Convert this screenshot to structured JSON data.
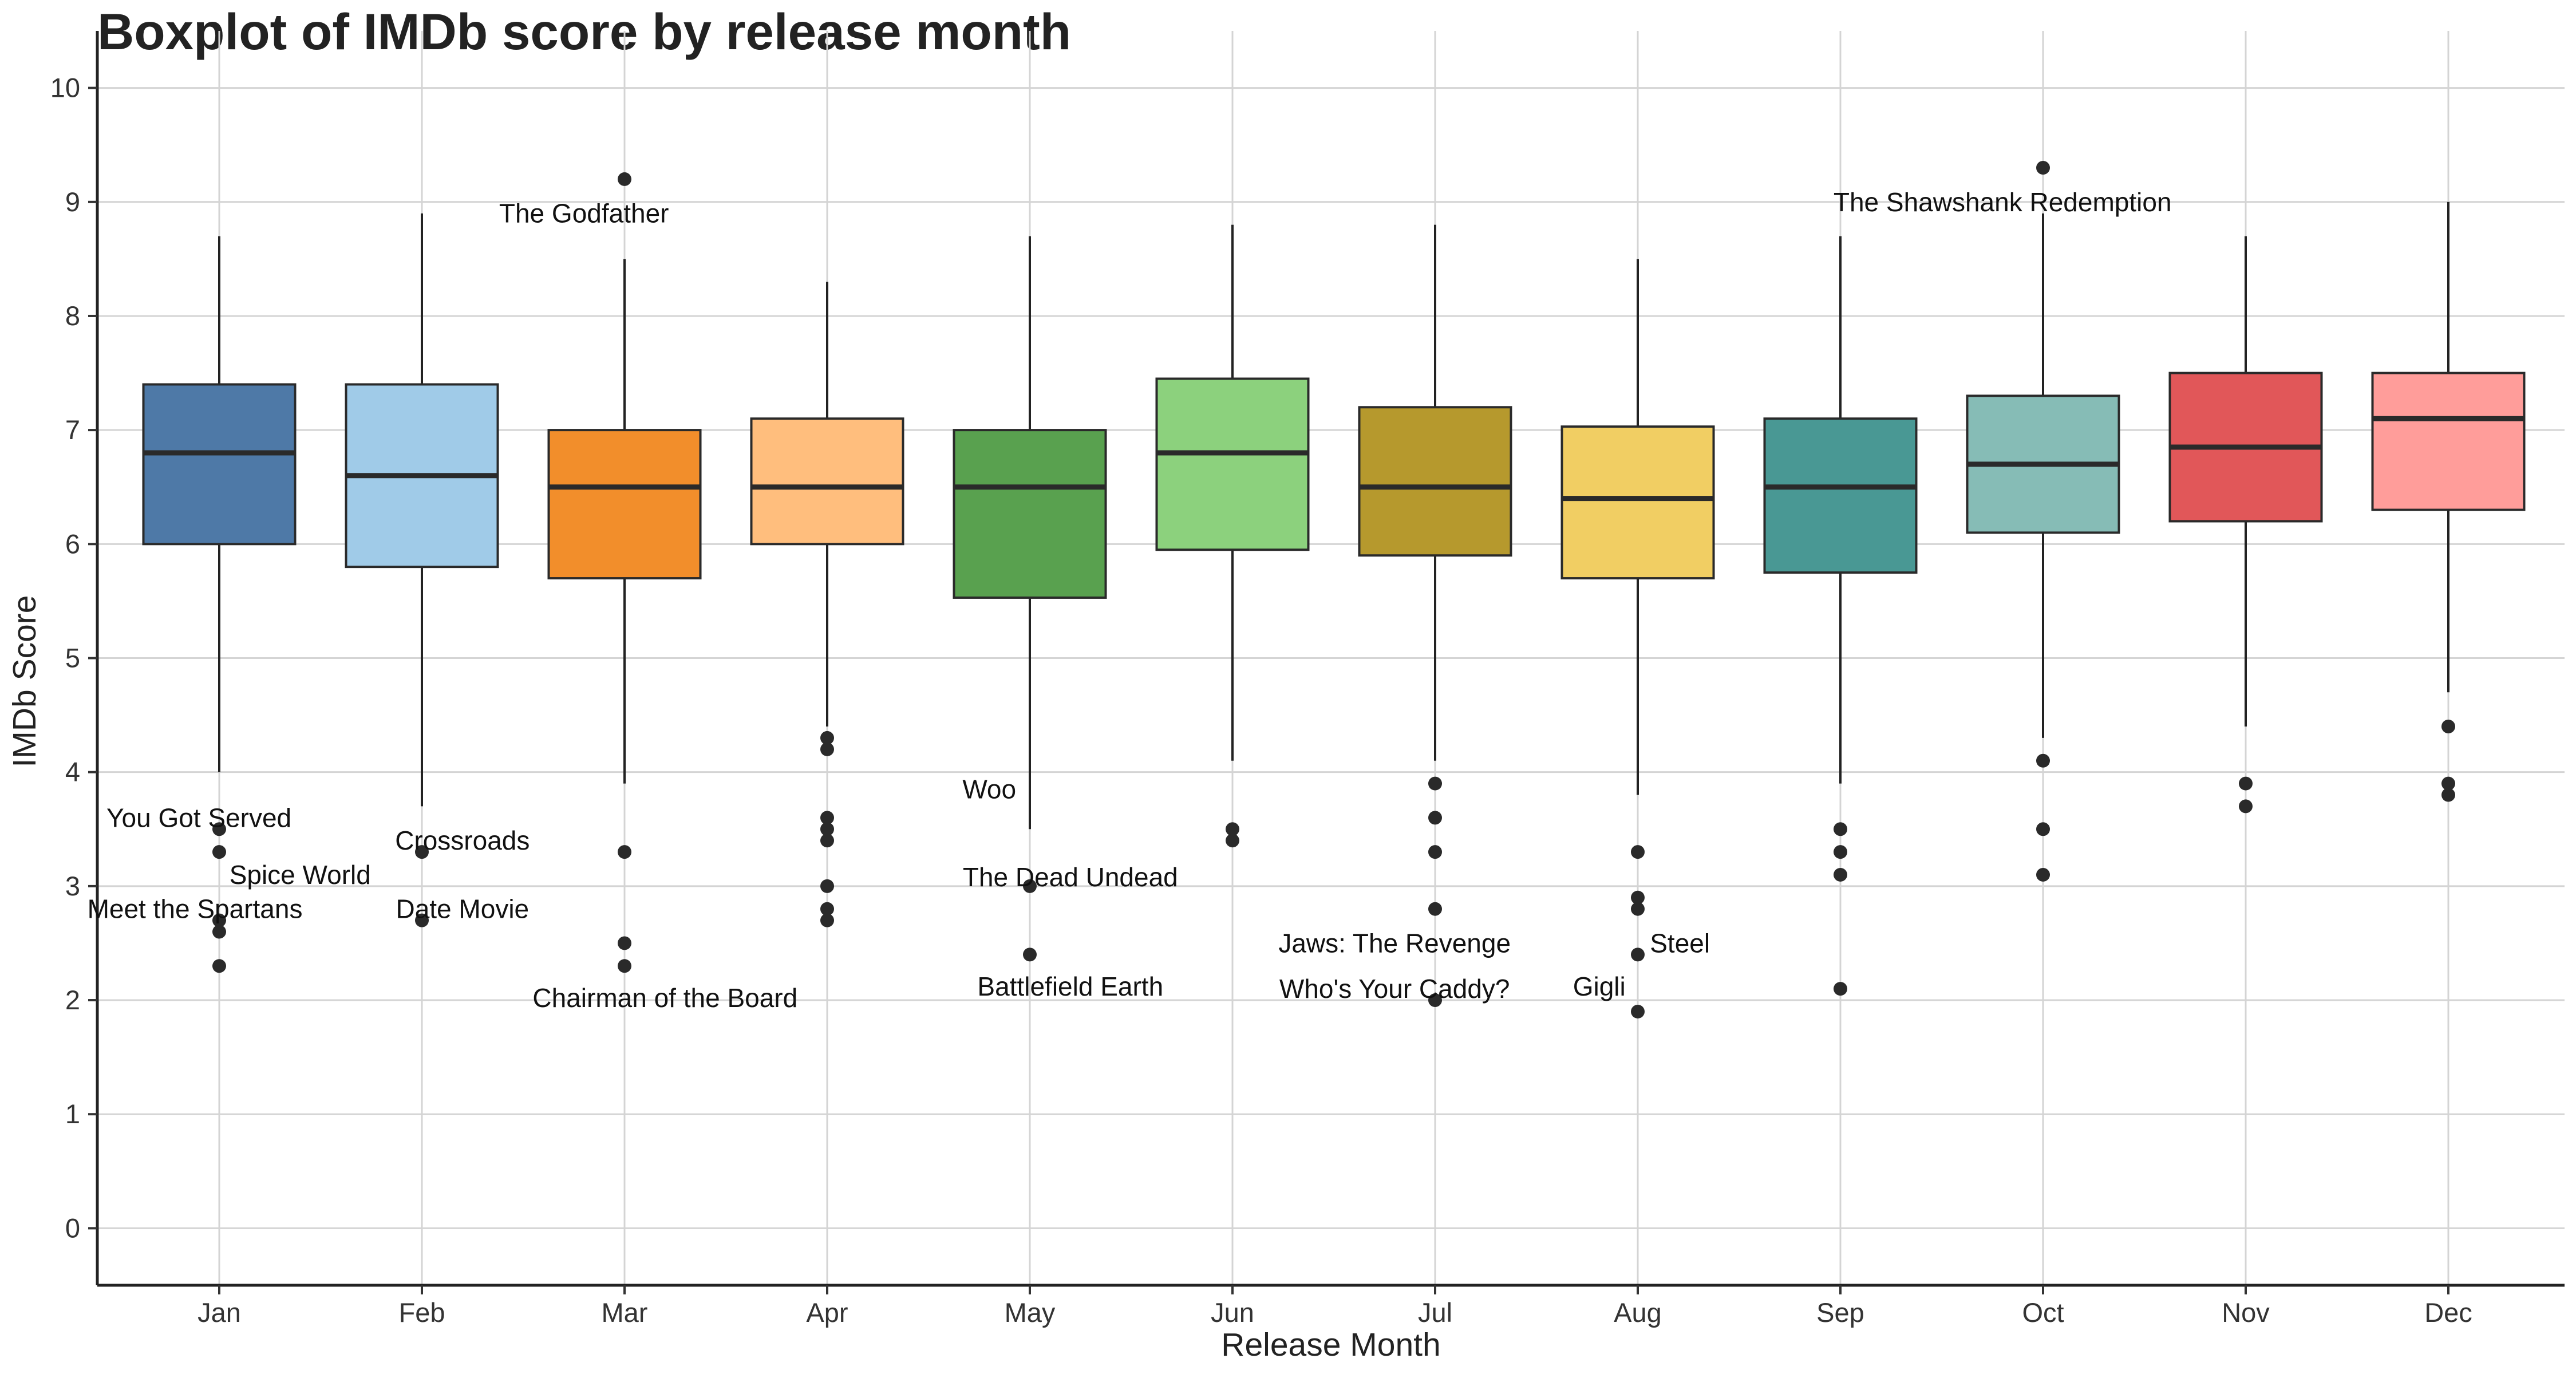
{
  "chart_data": {
    "type": "boxplot",
    "title": "Boxplot of IMDb score by release month",
    "xlabel": "Release Month",
    "ylabel": "IMDb Score",
    "ylim": [
      -0.5,
      10.5
    ],
    "yticks": [
      0,
      1,
      2,
      3,
      4,
      5,
      6,
      7,
      8,
      9,
      10
    ],
    "grid": true,
    "legend": "none",
    "categories": [
      "Jan",
      "Feb",
      "Mar",
      "Apr",
      "May",
      "Jun",
      "Jul",
      "Aug",
      "Sep",
      "Oct",
      "Nov",
      "Dec"
    ],
    "boxes": [
      {
        "month": "Jan",
        "color": "#4E79A7",
        "whisker_low": 4.0,
        "q1": 6.0,
        "median": 6.8,
        "q3": 7.4,
        "whisker_high": 8.7,
        "outliers": [
          3.5,
          3.3,
          2.7,
          2.6,
          2.3
        ]
      },
      {
        "month": "Feb",
        "color": "#A0CBE8",
        "whisker_low": 3.7,
        "q1": 5.8,
        "median": 6.6,
        "q3": 7.4,
        "whisker_high": 8.9,
        "outliers": [
          3.3,
          2.7
        ]
      },
      {
        "month": "Mar",
        "color": "#F28E2B",
        "whisker_low": 3.9,
        "q1": 5.7,
        "median": 6.5,
        "q3": 7.0,
        "whisker_high": 8.5,
        "outliers": [
          9.2,
          3.3,
          2.5,
          2.3
        ]
      },
      {
        "month": "Apr",
        "color": "#FFBE7D",
        "whisker_low": 4.4,
        "q1": 6.0,
        "median": 6.5,
        "q3": 7.1,
        "whisker_high": 8.3,
        "outliers": [
          4.3,
          4.2,
          3.6,
          3.5,
          3.4,
          3.0,
          2.8,
          2.7
        ]
      },
      {
        "month": "May",
        "color": "#59A14F",
        "whisker_low": 3.5,
        "q1": 5.53,
        "median": 6.5,
        "q3": 7.0,
        "whisker_high": 8.7,
        "outliers": [
          3.0,
          2.4
        ]
      },
      {
        "month": "Jun",
        "color": "#8CD17D",
        "whisker_low": 4.1,
        "q1": 5.95,
        "median": 6.8,
        "q3": 7.45,
        "whisker_high": 8.8,
        "outliers": [
          3.5,
          3.4
        ]
      },
      {
        "month": "Jul",
        "color": "#B6992D",
        "whisker_low": 4.1,
        "q1": 5.9,
        "median": 6.5,
        "q3": 7.2,
        "whisker_high": 8.8,
        "outliers": [
          3.9,
          3.6,
          3.3,
          2.8,
          2.0
        ]
      },
      {
        "month": "Aug",
        "color": "#F1CE63",
        "whisker_low": 3.8,
        "q1": 5.7,
        "median": 6.4,
        "q3": 7.03,
        "whisker_high": 8.5,
        "outliers": [
          3.3,
          2.9,
          2.8,
          2.4,
          1.9
        ]
      },
      {
        "month": "Sep",
        "color": "#499894",
        "whisker_low": 3.9,
        "q1": 5.75,
        "median": 6.5,
        "q3": 7.1,
        "whisker_high": 8.7,
        "outliers": [
          3.5,
          3.3,
          3.1,
          2.1
        ]
      },
      {
        "month": "Oct",
        "color": "#86BCB6",
        "whisker_low": 4.3,
        "q1": 6.1,
        "median": 6.7,
        "q3": 7.3,
        "whisker_high": 8.9,
        "outliers": [
          9.3,
          4.1,
          3.5,
          3.1
        ]
      },
      {
        "month": "Nov",
        "color": "#E15759",
        "whisker_low": 4.4,
        "q1": 6.2,
        "median": 6.85,
        "q3": 7.5,
        "whisker_high": 8.7,
        "outliers": [
          3.9,
          3.7
        ]
      },
      {
        "month": "Dec",
        "color": "#FF9D9A",
        "whisker_low": 4.7,
        "q1": 6.3,
        "median": 7.1,
        "q3": 7.5,
        "whisker_high": 9.0,
        "outliers": [
          4.4,
          3.9,
          3.8
        ]
      }
    ],
    "annotations": [
      {
        "text": "The Godfather",
        "month": "Mar",
        "y": 8.9,
        "anchor": "middle",
        "dx": -0.2
      },
      {
        "text": "The Shawshank Redemption",
        "month": "Oct",
        "y": 9.0,
        "anchor": "middle",
        "dx": -0.2
      },
      {
        "text": "You Got Served",
        "month": "Jan",
        "y": 3.6,
        "anchor": "middle",
        "dx": -0.1
      },
      {
        "text": "Spice World",
        "month": "Jan",
        "y": 3.1,
        "anchor": "start",
        "dx": 0.05
      },
      {
        "text": "Meet the Spartans",
        "month": "Jan",
        "y": 2.8,
        "anchor": "middle",
        "dx": -0.12
      },
      {
        "text": "Crossroads",
        "month": "Feb",
        "y": 3.4,
        "anchor": "middle",
        "dx": 0.2
      },
      {
        "text": "Date Movie",
        "month": "Feb",
        "y": 2.8,
        "anchor": "middle",
        "dx": 0.2
      },
      {
        "text": "Chairman of the Board",
        "month": "Mar",
        "y": 2.02,
        "anchor": "middle",
        "dx": 0.2
      },
      {
        "text": "Woo",
        "month": "May",
        "y": 3.85,
        "anchor": "middle",
        "dx": -0.2
      },
      {
        "text": "The Dead Undead",
        "month": "May",
        "y": 3.08,
        "anchor": "middle",
        "dx": 0.2
      },
      {
        "text": "Battlefield Earth",
        "month": "May",
        "y": 2.12,
        "anchor": "middle",
        "dx": 0.2
      },
      {
        "text": "Jaws: The Revenge",
        "month": "Jul",
        "y": 2.5,
        "anchor": "middle",
        "dx": -0.2
      },
      {
        "text": "Who's Your Caddy?",
        "month": "Jul",
        "y": 2.1,
        "anchor": "middle",
        "dx": -0.2
      },
      {
        "text": "Steel",
        "month": "Aug",
        "y": 2.5,
        "anchor": "start",
        "dx": 0.06
      },
      {
        "text": "Gigli",
        "month": "Aug",
        "y": 2.12,
        "anchor": "end",
        "dx": -0.06
      }
    ]
  }
}
